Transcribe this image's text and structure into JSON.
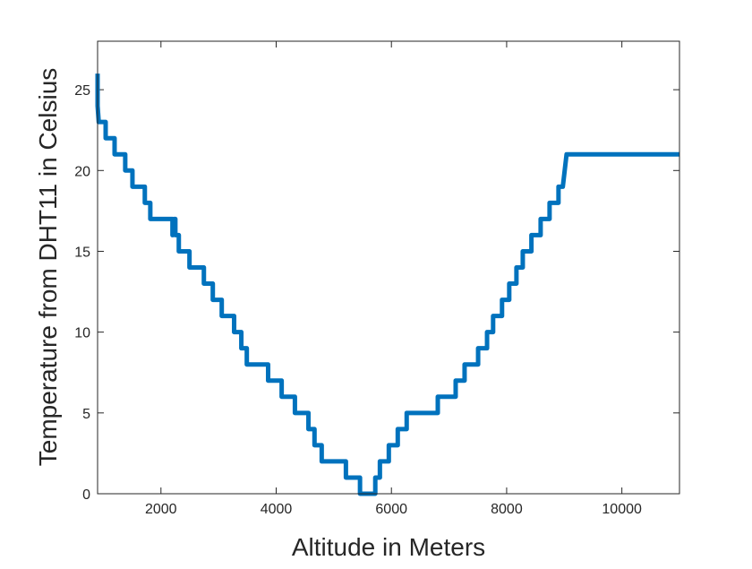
{
  "chart_data": {
    "type": "line",
    "xlabel": "Altitude in Meters",
    "ylabel": "Temperature from DHT11 in Celsius",
    "x": [
      900,
      900,
      920,
      1040,
      1040,
      1195,
      1195,
      1380,
      1380,
      1505,
      1505,
      1720,
      1720,
      1815,
      1815,
      2200,
      2200,
      2230,
      2250,
      2250,
      2310,
      2310,
      2495,
      2495,
      2745,
      2745,
      2900,
      2900,
      3055,
      3055,
      3270,
      3270,
      3395,
      3395,
      3490,
      3490,
      3860,
      3860,
      4095,
      4095,
      4325,
      4325,
      4560,
      4560,
      4665,
      4665,
      4790,
      4790,
      5210,
      5210,
      5455,
      5455,
      5720,
      5720,
      5800,
      5800,
      5955,
      5955,
      6110,
      6110,
      6265,
      6265,
      6805,
      6805,
      7115,
      7115,
      7270,
      7270,
      7505,
      7505,
      7660,
      7660,
      7765,
      7765,
      7920,
      7920,
      8045,
      8045,
      8170,
      8170,
      8280,
      8280,
      8430,
      8430,
      8590,
      8590,
      8745,
      8745,
      8900,
      8900,
      8975,
      9040,
      11000
    ],
    "series": [
      {
        "name": "Temperature",
        "color": "#0072bd",
        "values": [
          26,
          24,
          23,
          23,
          22,
          22,
          21,
          21,
          20,
          20,
          19,
          19,
          18,
          18,
          17,
          17,
          16,
          17,
          17,
          16,
          16,
          15,
          15,
          14,
          14,
          13,
          13,
          12,
          12,
          11,
          11,
          10,
          10,
          9,
          9,
          8,
          8,
          7,
          7,
          6,
          6,
          5,
          5,
          4,
          4,
          3,
          3,
          2,
          2,
          1,
          1,
          0,
          0,
          1,
          1,
          2,
          2,
          3,
          3,
          4,
          4,
          5,
          5,
          6,
          6,
          7,
          7,
          8,
          8,
          9,
          9,
          10,
          10,
          11,
          11,
          12,
          12,
          13,
          13,
          14,
          14,
          15,
          15,
          16,
          16,
          17,
          17,
          18,
          18,
          19,
          19,
          21,
          21
        ]
      }
    ],
    "xlim": [
      900,
      11000
    ],
    "xticks": [
      2000,
      4000,
      6000,
      8000,
      10000
    ],
    "ylim": [
      0,
      28
    ],
    "yticks": [
      0,
      5,
      10,
      15,
      20,
      25
    ]
  }
}
